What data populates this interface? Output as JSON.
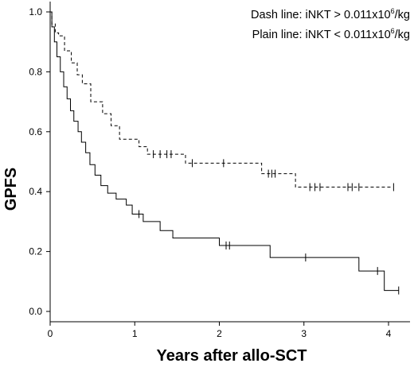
{
  "chart_data": {
    "type": "line",
    "title": "",
    "xlabel": "Years after allo-SCT",
    "ylabel": "GPFS",
    "xlim": [
      0,
      4.3
    ],
    "ylim": [
      0,
      1.0
    ],
    "x_ticks": [
      "0",
      "1",
      "2",
      "3",
      "4"
    ],
    "y_ticks": [
      "0.0",
      "0.2",
      "0.4",
      "0.6",
      "0.8",
      "1.0"
    ],
    "legend": {
      "dash_line": {
        "prefix": "Dash line: iNKT > 0.011x10",
        "sup": "6",
        "suffix": "/kg"
      },
      "plain_line": {
        "prefix": "Plain line: iNKT < 0.011x10",
        "sup": "6",
        "suffix": "/kg"
      }
    },
    "series": [
      {
        "style": "dashed",
        "points": [
          [
            0,
            1.0
          ],
          [
            0.02,
            0.96
          ],
          [
            0.06,
            0.93
          ],
          [
            0.1,
            0.92
          ],
          [
            0.17,
            0.87
          ],
          [
            0.25,
            0.83
          ],
          [
            0.32,
            0.79
          ],
          [
            0.38,
            0.76
          ],
          [
            0.48,
            0.7
          ],
          [
            0.62,
            0.66
          ],
          [
            0.72,
            0.62
          ],
          [
            0.82,
            0.575
          ],
          [
            0.98,
            0.575
          ],
          [
            1.05,
            0.55
          ],
          [
            1.15,
            0.525
          ],
          [
            1.55,
            0.525
          ],
          [
            1.6,
            0.495
          ],
          [
            2.45,
            0.495
          ],
          [
            2.5,
            0.46
          ],
          [
            2.72,
            0.46
          ],
          [
            2.9,
            0.415
          ],
          [
            4.05,
            0.415
          ]
        ],
        "censors": [
          [
            1.22,
            0.525
          ],
          [
            1.3,
            0.525
          ],
          [
            1.38,
            0.525
          ],
          [
            1.43,
            0.525
          ],
          [
            1.68,
            0.495
          ],
          [
            2.05,
            0.495
          ],
          [
            2.58,
            0.46
          ],
          [
            2.62,
            0.46
          ],
          [
            2.66,
            0.46
          ],
          [
            3.07,
            0.415
          ],
          [
            3.13,
            0.415
          ],
          [
            3.19,
            0.415
          ],
          [
            3.52,
            0.415
          ],
          [
            3.57,
            0.415
          ],
          [
            3.65,
            0.415
          ],
          [
            4.06,
            0.415
          ]
        ]
      },
      {
        "style": "solid",
        "points": [
          [
            0,
            1.0
          ],
          [
            0.02,
            0.95
          ],
          [
            0.05,
            0.9
          ],
          [
            0.08,
            0.85
          ],
          [
            0.12,
            0.8
          ],
          [
            0.16,
            0.75
          ],
          [
            0.2,
            0.71
          ],
          [
            0.24,
            0.67
          ],
          [
            0.28,
            0.635
          ],
          [
            0.33,
            0.6
          ],
          [
            0.37,
            0.565
          ],
          [
            0.42,
            0.53
          ],
          [
            0.47,
            0.49
          ],
          [
            0.53,
            0.455
          ],
          [
            0.6,
            0.42
          ],
          [
            0.68,
            0.395
          ],
          [
            0.78,
            0.375
          ],
          [
            0.9,
            0.355
          ],
          [
            0.97,
            0.325
          ],
          [
            1.1,
            0.3
          ],
          [
            1.3,
            0.27
          ],
          [
            1.45,
            0.245
          ],
          [
            2.0,
            0.22
          ],
          [
            2.6,
            0.18
          ],
          [
            3.65,
            0.135
          ],
          [
            3.95,
            0.07
          ],
          [
            4.12,
            0.07
          ]
        ],
        "censors": [
          [
            1.05,
            0.325
          ],
          [
            2.08,
            0.22
          ],
          [
            2.12,
            0.22
          ],
          [
            3.02,
            0.18
          ],
          [
            3.87,
            0.135
          ],
          [
            4.12,
            0.07
          ]
        ]
      }
    ]
  }
}
